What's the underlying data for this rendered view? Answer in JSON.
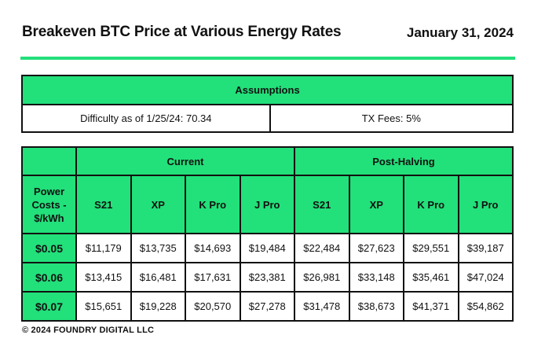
{
  "header": {
    "title": "Breakeven BTC Price at Various Energy Rates",
    "date": "January 31, 2024"
  },
  "colors": {
    "accent": "#22e07a",
    "border": "#111111",
    "text": "#111111"
  },
  "assumptions": {
    "heading": "Assumptions",
    "difficulty": "Difficulty as of 1/25/24: 70.34",
    "tx_fees": "TX Fees: 5%"
  },
  "table": {
    "groups": [
      "Current",
      "Post-Halving"
    ],
    "row_header": "Power Costs - $/kWh",
    "columns": [
      "S21",
      "XP",
      "K Pro",
      "J Pro",
      "S21",
      "XP",
      "K Pro",
      "J Pro"
    ],
    "rows": [
      {
        "label": "$0.05",
        "values": [
          "$11,179",
          "$13,735",
          "$14,693",
          "$19,484",
          "$22,484",
          "$27,623",
          "$29,551",
          "$39,187"
        ]
      },
      {
        "label": "$0.06",
        "values": [
          "$13,415",
          "$16,481",
          "$17,631",
          "$23,381",
          "$26,981",
          "$33,148",
          "$35,461",
          "$47,024"
        ]
      },
      {
        "label": "$0.07",
        "values": [
          "$15,651",
          "$19,228",
          "$20,570",
          "$27,278",
          "$31,478",
          "$38,673",
          "$41,371",
          "$54,862"
        ]
      }
    ]
  },
  "footer": {
    "text": "©   2024 FOUNDRY DIGITAL LLC"
  }
}
